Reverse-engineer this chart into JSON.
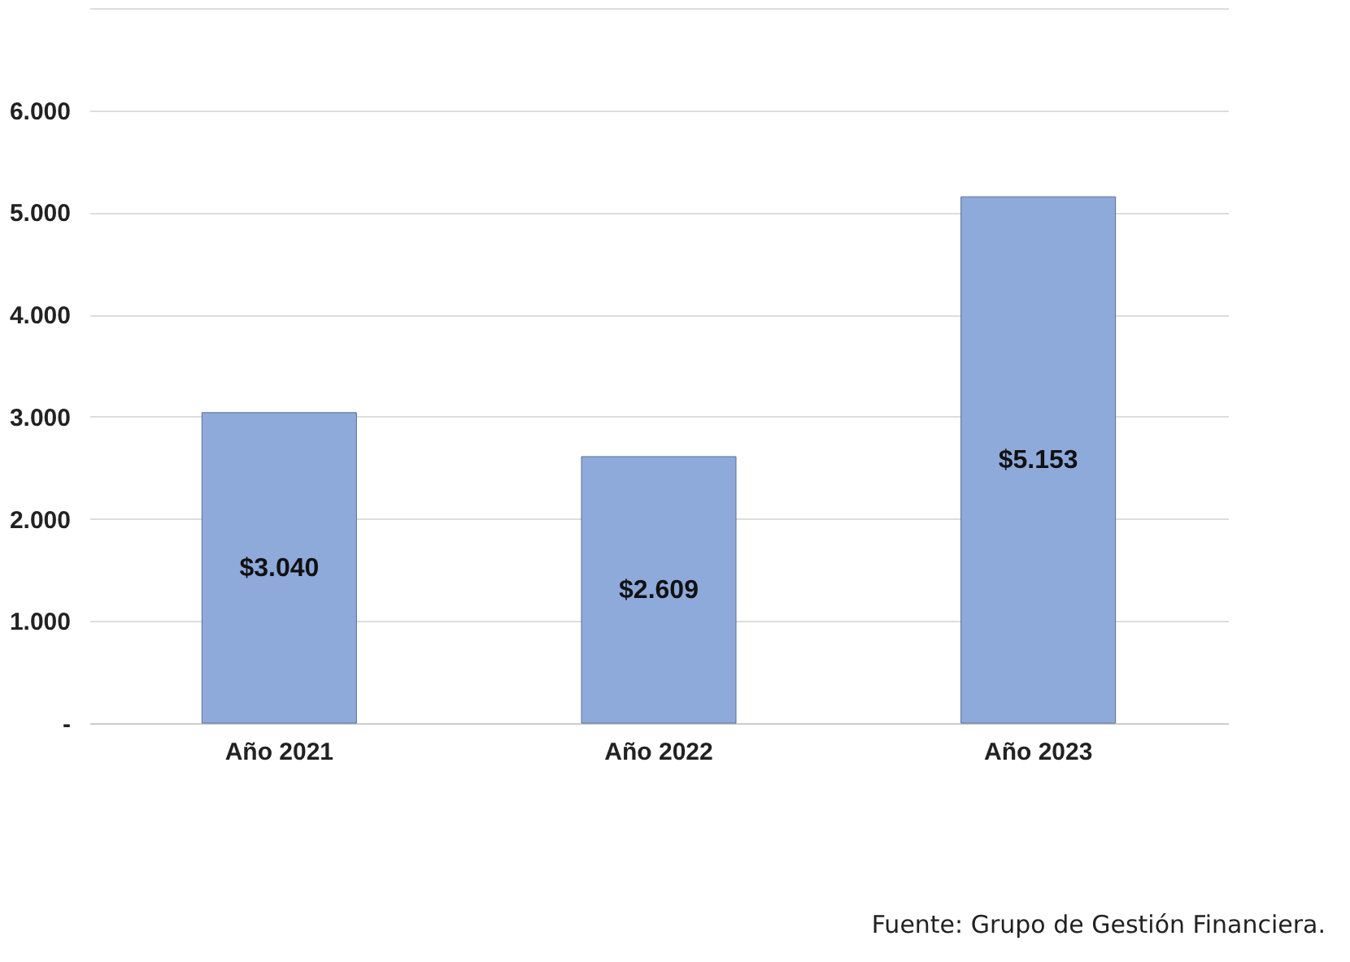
{
  "chart_data": {
    "type": "bar",
    "categories": [
      "Año 2021",
      "Año 2022",
      "Año 2023"
    ],
    "values": [
      3040,
      2609,
      5153
    ],
    "color": "#8eaadb",
    "value_labels": [
      "$3.040",
      "$2.609",
      "$5.153"
    ],
    "ylim": [
      0,
      7000
    ],
    "yticks": [
      {
        "value": 0,
        "label": "-"
      },
      {
        "value": 1000,
        "label": "1.000"
      },
      {
        "value": 2000,
        "label": "2.000"
      },
      {
        "value": 3000,
        "label": "3.000"
      },
      {
        "value": 4000,
        "label": "4.000"
      },
      {
        "value": 5000,
        "label": "5.000"
      },
      {
        "value": 6000,
        "label": "6.000"
      },
      {
        "value": 7000,
        "label": null
      }
    ],
    "grid": true,
    "annotations": [
      "Fuente: Grupo de Gestión Financiera."
    ]
  }
}
